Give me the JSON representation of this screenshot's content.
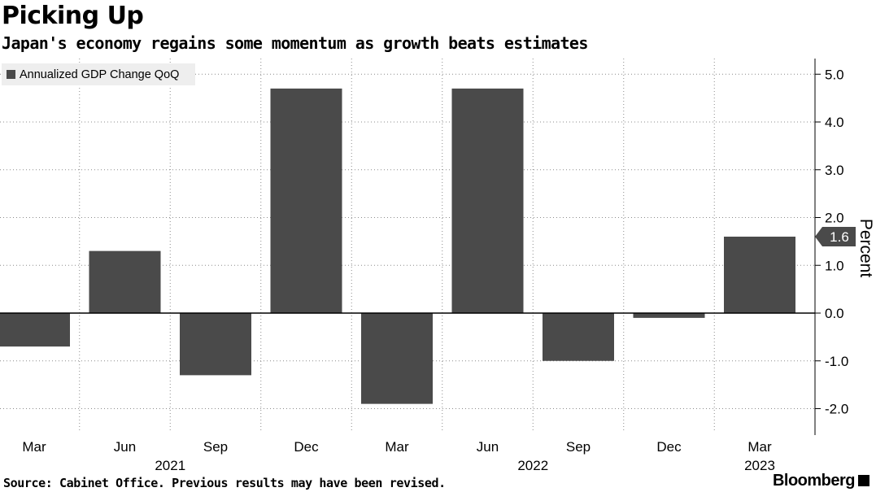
{
  "header": {
    "title": "Picking Up",
    "subtitle": "Japan's economy regains some momentum as growth beats estimates"
  },
  "footer": {
    "source": "Source: Cabinet Office. Previous results may have been revised.",
    "brand": "Bloomberg"
  },
  "colors": {
    "bar": "#4a4a4a",
    "grid": "#8c8c8c",
    "legend_bg": "#eeeeee",
    "marker_bg": "#4a4a4a"
  },
  "chart_data": {
    "type": "bar",
    "legend": "Annualized GDP Change QoQ",
    "ylabel": "Percent",
    "ylim": [
      -2.3,
      5.3
    ],
    "yticks": [
      5.0,
      4.0,
      3.0,
      2.0,
      1.0,
      0.0,
      -1.0,
      -2.0
    ],
    "ytick_labels": [
      "5.0",
      "4.0",
      "3.0",
      "2.0",
      "1.0",
      "0.0",
      "-1.0",
      "-2.0"
    ],
    "categories": [
      "Mar",
      "Jun",
      "Sep",
      "Dec",
      "Mar",
      "Jun",
      "Sep",
      "Dec",
      "Mar"
    ],
    "values": [
      -0.7,
      1.3,
      -1.3,
      4.7,
      -1.9,
      4.7,
      -1.0,
      -0.1,
      1.6
    ],
    "year_labels": [
      {
        "label": "2021",
        "index": 1.5
      },
      {
        "label": "2022",
        "index": 5.5
      },
      {
        "label": "2023",
        "index": 8
      }
    ],
    "last_value_label": "1.6",
    "last_value": 1.6
  }
}
